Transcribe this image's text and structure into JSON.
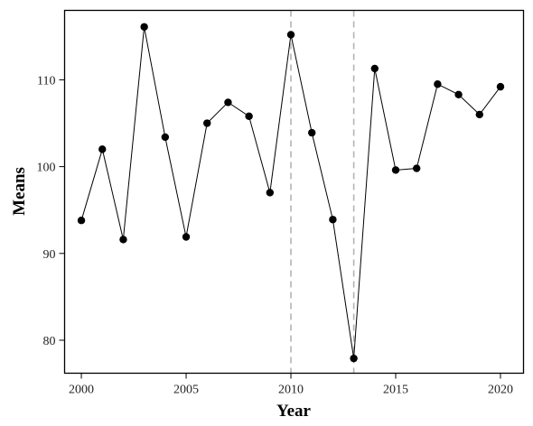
{
  "chart_data": {
    "type": "line",
    "xlabel": "Year",
    "ylabel": "Means",
    "xlim": [
      1999.2,
      2021.1
    ],
    "ylim": [
      76.2,
      118.0
    ],
    "xticks": [
      2000,
      2005,
      2010,
      2015,
      2020
    ],
    "yticks": [
      80,
      90,
      100,
      110
    ],
    "vlines": [
      2010,
      2013
    ],
    "grid": false,
    "series": [
      {
        "x": [
          2000,
          2001,
          2002,
          2003,
          2004,
          2005,
          2006,
          2007,
          2008,
          2009,
          2010,
          2011,
          2012,
          2013,
          2014,
          2015,
          2016,
          2017,
          2018,
          2019,
          2020
        ],
        "y": [
          93.8,
          102.0,
          91.6,
          116.1,
          103.4,
          91.9,
          105.0,
          107.4,
          105.8,
          97.0,
          115.2,
          103.9,
          93.9,
          77.9,
          111.3,
          99.6,
          99.8,
          109.5,
          108.3,
          106.0,
          109.2
        ]
      }
    ]
  }
}
